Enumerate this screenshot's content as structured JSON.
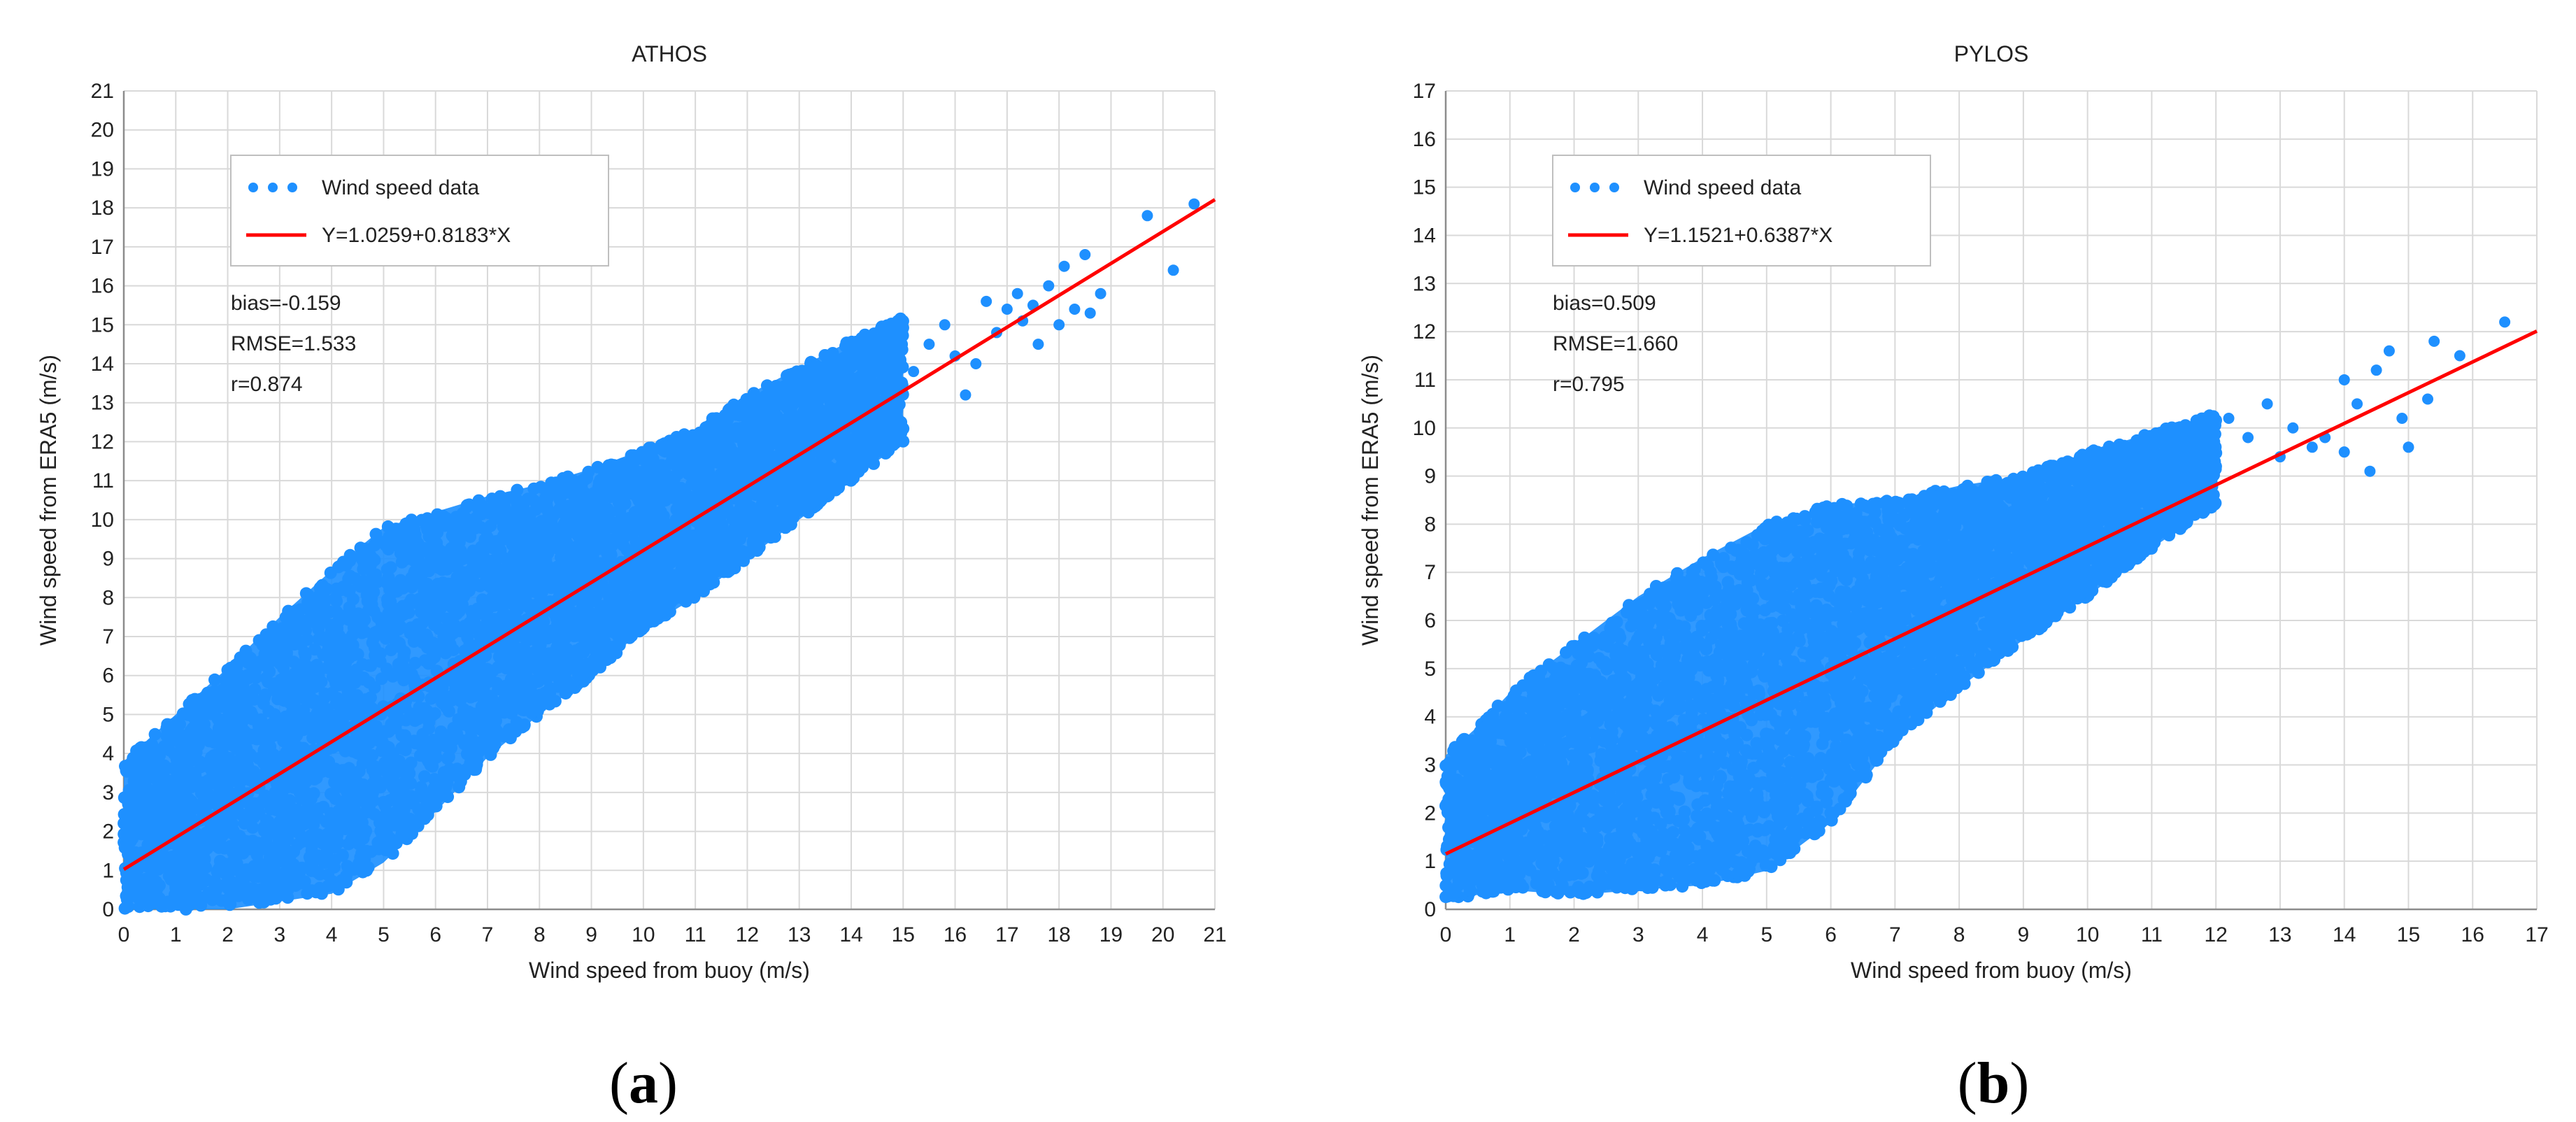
{
  "chart_data": [
    {
      "type": "scatter",
      "panel_label": "a",
      "title": "ATHOS",
      "xlabel": "Wind speed from buoy (m/s)",
      "ylabel": "Wind speed from ERA5 (m/s)",
      "xlim": [
        0,
        21
      ],
      "ylim": [
        0,
        21
      ],
      "xticks": [
        0,
        1,
        2,
        3,
        4,
        5,
        6,
        7,
        8,
        9,
        10,
        11,
        12,
        13,
        14,
        15,
        16,
        17,
        18,
        19,
        20,
        21
      ],
      "yticks": [
        0,
        1,
        2,
        3,
        4,
        5,
        6,
        7,
        8,
        9,
        10,
        11,
        12,
        13,
        14,
        15,
        16,
        17,
        18,
        19,
        20,
        21
      ],
      "grid": true,
      "legend_position": "top-left",
      "series": [
        {
          "name": "Wind speed data",
          "kind": "scatter",
          "color": "#1e90ff",
          "cloud_envelope": {
            "x": [
              0,
              1,
              2,
              3,
              4,
              5,
              6,
              7,
              8,
              9,
              10,
              11,
              12,
              13,
              14,
              15
            ],
            "y_low": [
              0,
              0,
              0,
              0.2,
              0.4,
              1.2,
              2.5,
              3.9,
              5.0,
              6.0,
              7.2,
              8.0,
              9.0,
              10.0,
              11.0,
              12.0
            ],
            "y_high": [
              3.8,
              5.0,
              6.2,
              7.5,
              8.7,
              9.8,
              10.2,
              10.6,
              10.9,
              11.3,
              11.8,
              12.3,
              13.2,
              13.9,
              14.6,
              15.2
            ]
          },
          "outliers": [
            [
              15.2,
              13.8
            ],
            [
              15.5,
              14.5
            ],
            [
              15.8,
              15.0
            ],
            [
              16.0,
              14.2
            ],
            [
              16.2,
              13.2
            ],
            [
              16.4,
              14.0
            ],
            [
              16.6,
              15.6
            ],
            [
              16.8,
              14.8
            ],
            [
              17.0,
              15.4
            ],
            [
              17.2,
              15.8
            ],
            [
              17.3,
              15.1
            ],
            [
              17.5,
              15.5
            ],
            [
              17.6,
              14.5
            ],
            [
              17.8,
              16.0
            ],
            [
              18.0,
              15.0
            ],
            [
              18.1,
              16.5
            ],
            [
              18.3,
              15.4
            ],
            [
              18.5,
              16.8
            ],
            [
              18.6,
              15.3
            ],
            [
              18.8,
              15.8
            ],
            [
              19.7,
              17.8
            ],
            [
              20.2,
              16.4
            ],
            [
              20.6,
              18.1
            ]
          ]
        },
        {
          "name": "Y=1.0259+0.8183*X",
          "kind": "line",
          "color": "#ff0000",
          "intercept": 1.0259,
          "slope": 0.8183
        }
      ],
      "stats": [
        "bias=-0.159",
        "RMSE=1.533",
        "r=0.874"
      ]
    },
    {
      "type": "scatter",
      "panel_label": "b",
      "title": "PYLOS",
      "xlabel": "Wind speed from buoy (m/s)",
      "ylabel": "Wind speed from ERA5 (m/s)",
      "xlim": [
        0,
        17
      ],
      "ylim": [
        0,
        17
      ],
      "xticks": [
        0,
        1,
        2,
        3,
        4,
        5,
        6,
        7,
        8,
        9,
        10,
        11,
        12,
        13,
        14,
        15,
        16,
        17
      ],
      "yticks": [
        0,
        1,
        2,
        3,
        4,
        5,
        6,
        7,
        8,
        9,
        10,
        11,
        12,
        13,
        14,
        15,
        16,
        17
      ],
      "grid": true,
      "legend_position": "top-left",
      "series": [
        {
          "name": "Wind speed data",
          "kind": "scatter",
          "color": "#1e90ff",
          "cloud_envelope": {
            "x": [
              0,
              0.5,
              1,
              2,
              3,
              4,
              5,
              6,
              7,
              8,
              9,
              10,
              11,
              12
            ],
            "y_low": [
              0.2,
              0.3,
              0.4,
              0.3,
              0.4,
              0.5,
              0.8,
              1.8,
              3.5,
              4.6,
              5.6,
              6.5,
              7.5,
              8.4
            ],
            "y_high": [
              3.2,
              3.8,
              4.5,
              5.5,
              6.5,
              7.3,
              8.0,
              8.4,
              8.5,
              8.8,
              9.0,
              9.5,
              9.9,
              10.3
            ]
          },
          "outliers": [
            [
              12.2,
              10.2
            ],
            [
              12.5,
              9.8
            ],
            [
              12.8,
              10.5
            ],
            [
              13.0,
              9.4
            ],
            [
              13.2,
              10.0
            ],
            [
              13.5,
              9.6
            ],
            [
              13.7,
              9.8
            ],
            [
              14.0,
              9.5
            ],
            [
              14.2,
              10.5
            ],
            [
              14.0,
              11.0
            ],
            [
              14.4,
              9.1
            ],
            [
              14.5,
              11.2
            ],
            [
              14.7,
              11.6
            ],
            [
              14.9,
              10.2
            ],
            [
              15.0,
              9.6
            ],
            [
              15.3,
              10.6
            ],
            [
              15.4,
              11.8
            ],
            [
              15.8,
              11.5
            ],
            [
              16.5,
              12.2
            ]
          ]
        },
        {
          "name": "Y=1.1521+0.6387*X",
          "kind": "line",
          "color": "#ff0000",
          "intercept": 1.1521,
          "slope": 0.6387
        }
      ],
      "stats": [
        "bias=0.509",
        "RMSE=1.660",
        "r=0.795"
      ]
    }
  ]
}
